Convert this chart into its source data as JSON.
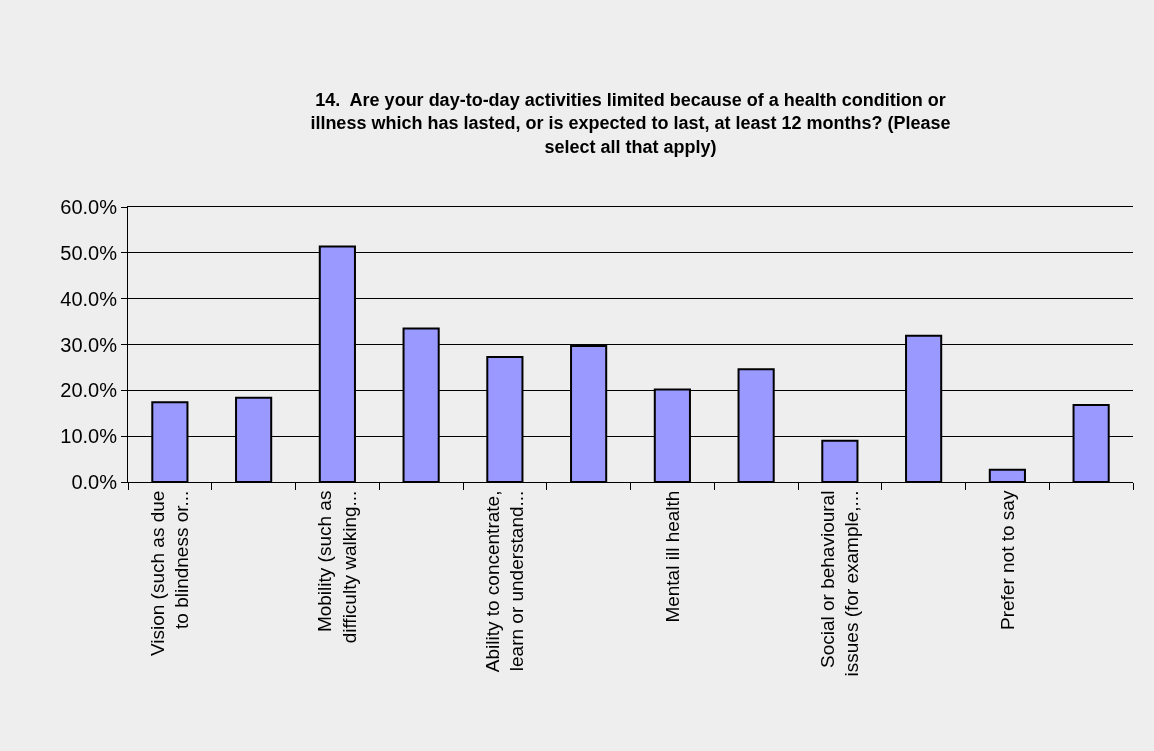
{
  "chart_data": {
    "type": "bar",
    "title": "14.  Are your day-to-day activities limited because of a health condition or\nillness which has lasted, or is expected to last, at least 12 months? (Please\nselect all that apply)",
    "categories": [
      "Vision (such as due\nto blindness or...",
      null,
      "Mobility (such as\ndifficulty walking...",
      null,
      "Ability to concentrate,\nlearn or understand...",
      null,
      "Mental ill health",
      null,
      "Social or behavioural\nissues (for example,...",
      null,
      "Prefer not to say",
      null
    ],
    "values": [
      17.4,
      18.4,
      51.4,
      33.5,
      27.3,
      29.7,
      20.2,
      24.6,
      9.0,
      31.9,
      2.7,
      16.8
    ],
    "color": "#9999ff",
    "ylim": [
      0,
      60
    ],
    "yticks": [
      {
        "value": 0,
        "label": "0.0%"
      },
      {
        "value": 10,
        "label": "10.0%"
      },
      {
        "value": 20,
        "label": "20.0%"
      },
      {
        "value": 30,
        "label": "30.0%"
      },
      {
        "value": 40,
        "label": "40.0%"
      },
      {
        "value": 50,
        "label": "50.0%"
      },
      {
        "value": 60,
        "label": "60.0%"
      }
    ],
    "grid": "y"
  }
}
